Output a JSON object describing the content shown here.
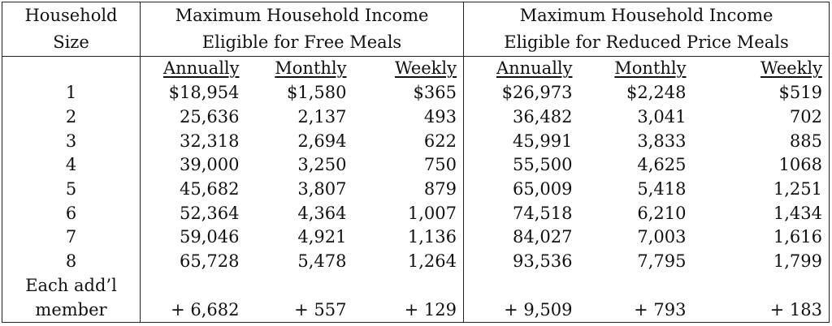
{
  "table": {
    "header_size_line1": "Household",
    "header_size_line2": "Size",
    "header_free_line1": "Maximum Household Income",
    "header_free_line2": "Eligible for Free Meals",
    "header_reduced_line1": "Maximum Household Income",
    "header_reduced_line2": "Eligible for Reduced Price Meals",
    "subheaders": {
      "free_annual": "Annually",
      "free_monthly": "Monthly",
      "free_weekly": "Weekly",
      "reduced_annual": "Annually",
      "reduced_monthly": "Monthly",
      "reduced_weekly": "Weekly"
    },
    "rows": [
      {
        "size": "1",
        "free_annual": "$18,954",
        "free_monthly": "$1,580",
        "free_weekly": "$365",
        "reduced_annual": "$26,973",
        "reduced_monthly": "$2,248",
        "reduced_weekly": "$519"
      },
      {
        "size": "2",
        "free_annual": "25,636",
        "free_monthly": "2,137",
        "free_weekly": "493",
        "reduced_annual": "36,482",
        "reduced_monthly": "3,041",
        "reduced_weekly": "702"
      },
      {
        "size": "3",
        "free_annual": "32,318",
        "free_monthly": "2,694",
        "free_weekly": "622",
        "reduced_annual": "45,991",
        "reduced_monthly": "3,833",
        "reduced_weekly": "885"
      },
      {
        "size": "4",
        "free_annual": "39,000",
        "free_monthly": "3,250",
        "free_weekly": "750",
        "reduced_annual": "55,500",
        "reduced_monthly": "4,625",
        "reduced_weekly": "1068"
      },
      {
        "size": "5",
        "free_annual": "45,682",
        "free_monthly": "3,807",
        "free_weekly": "879",
        "reduced_annual": "65,009",
        "reduced_monthly": "5,418",
        "reduced_weekly": "1,251"
      },
      {
        "size": "6",
        "free_annual": "52,364",
        "free_monthly": "4,364",
        "free_weekly": "1,007",
        "reduced_annual": "74,518",
        "reduced_monthly": "6,210",
        "reduced_weekly": "1,434"
      },
      {
        "size": "7",
        "free_annual": "59,046",
        "free_monthly": "4,921",
        "free_weekly": "1,136",
        "reduced_annual": "84,027",
        "reduced_monthly": "7,003",
        "reduced_weekly": "1,616"
      },
      {
        "size": "8",
        "free_annual": "65,728",
        "free_monthly": "5,478",
        "free_weekly": "1,264",
        "reduced_annual": "93,536",
        "reduced_monthly": "7,795",
        "reduced_weekly": "1,799"
      }
    ],
    "additional": {
      "label_line1": "Each add’l",
      "label_line2": "member",
      "free_annual": "+ 6,682",
      "free_monthly": "+ 557",
      "free_weekly": "+ 129",
      "reduced_annual": "+ 9,509",
      "reduced_monthly": "+ 793",
      "reduced_weekly": "+ 183"
    }
  }
}
